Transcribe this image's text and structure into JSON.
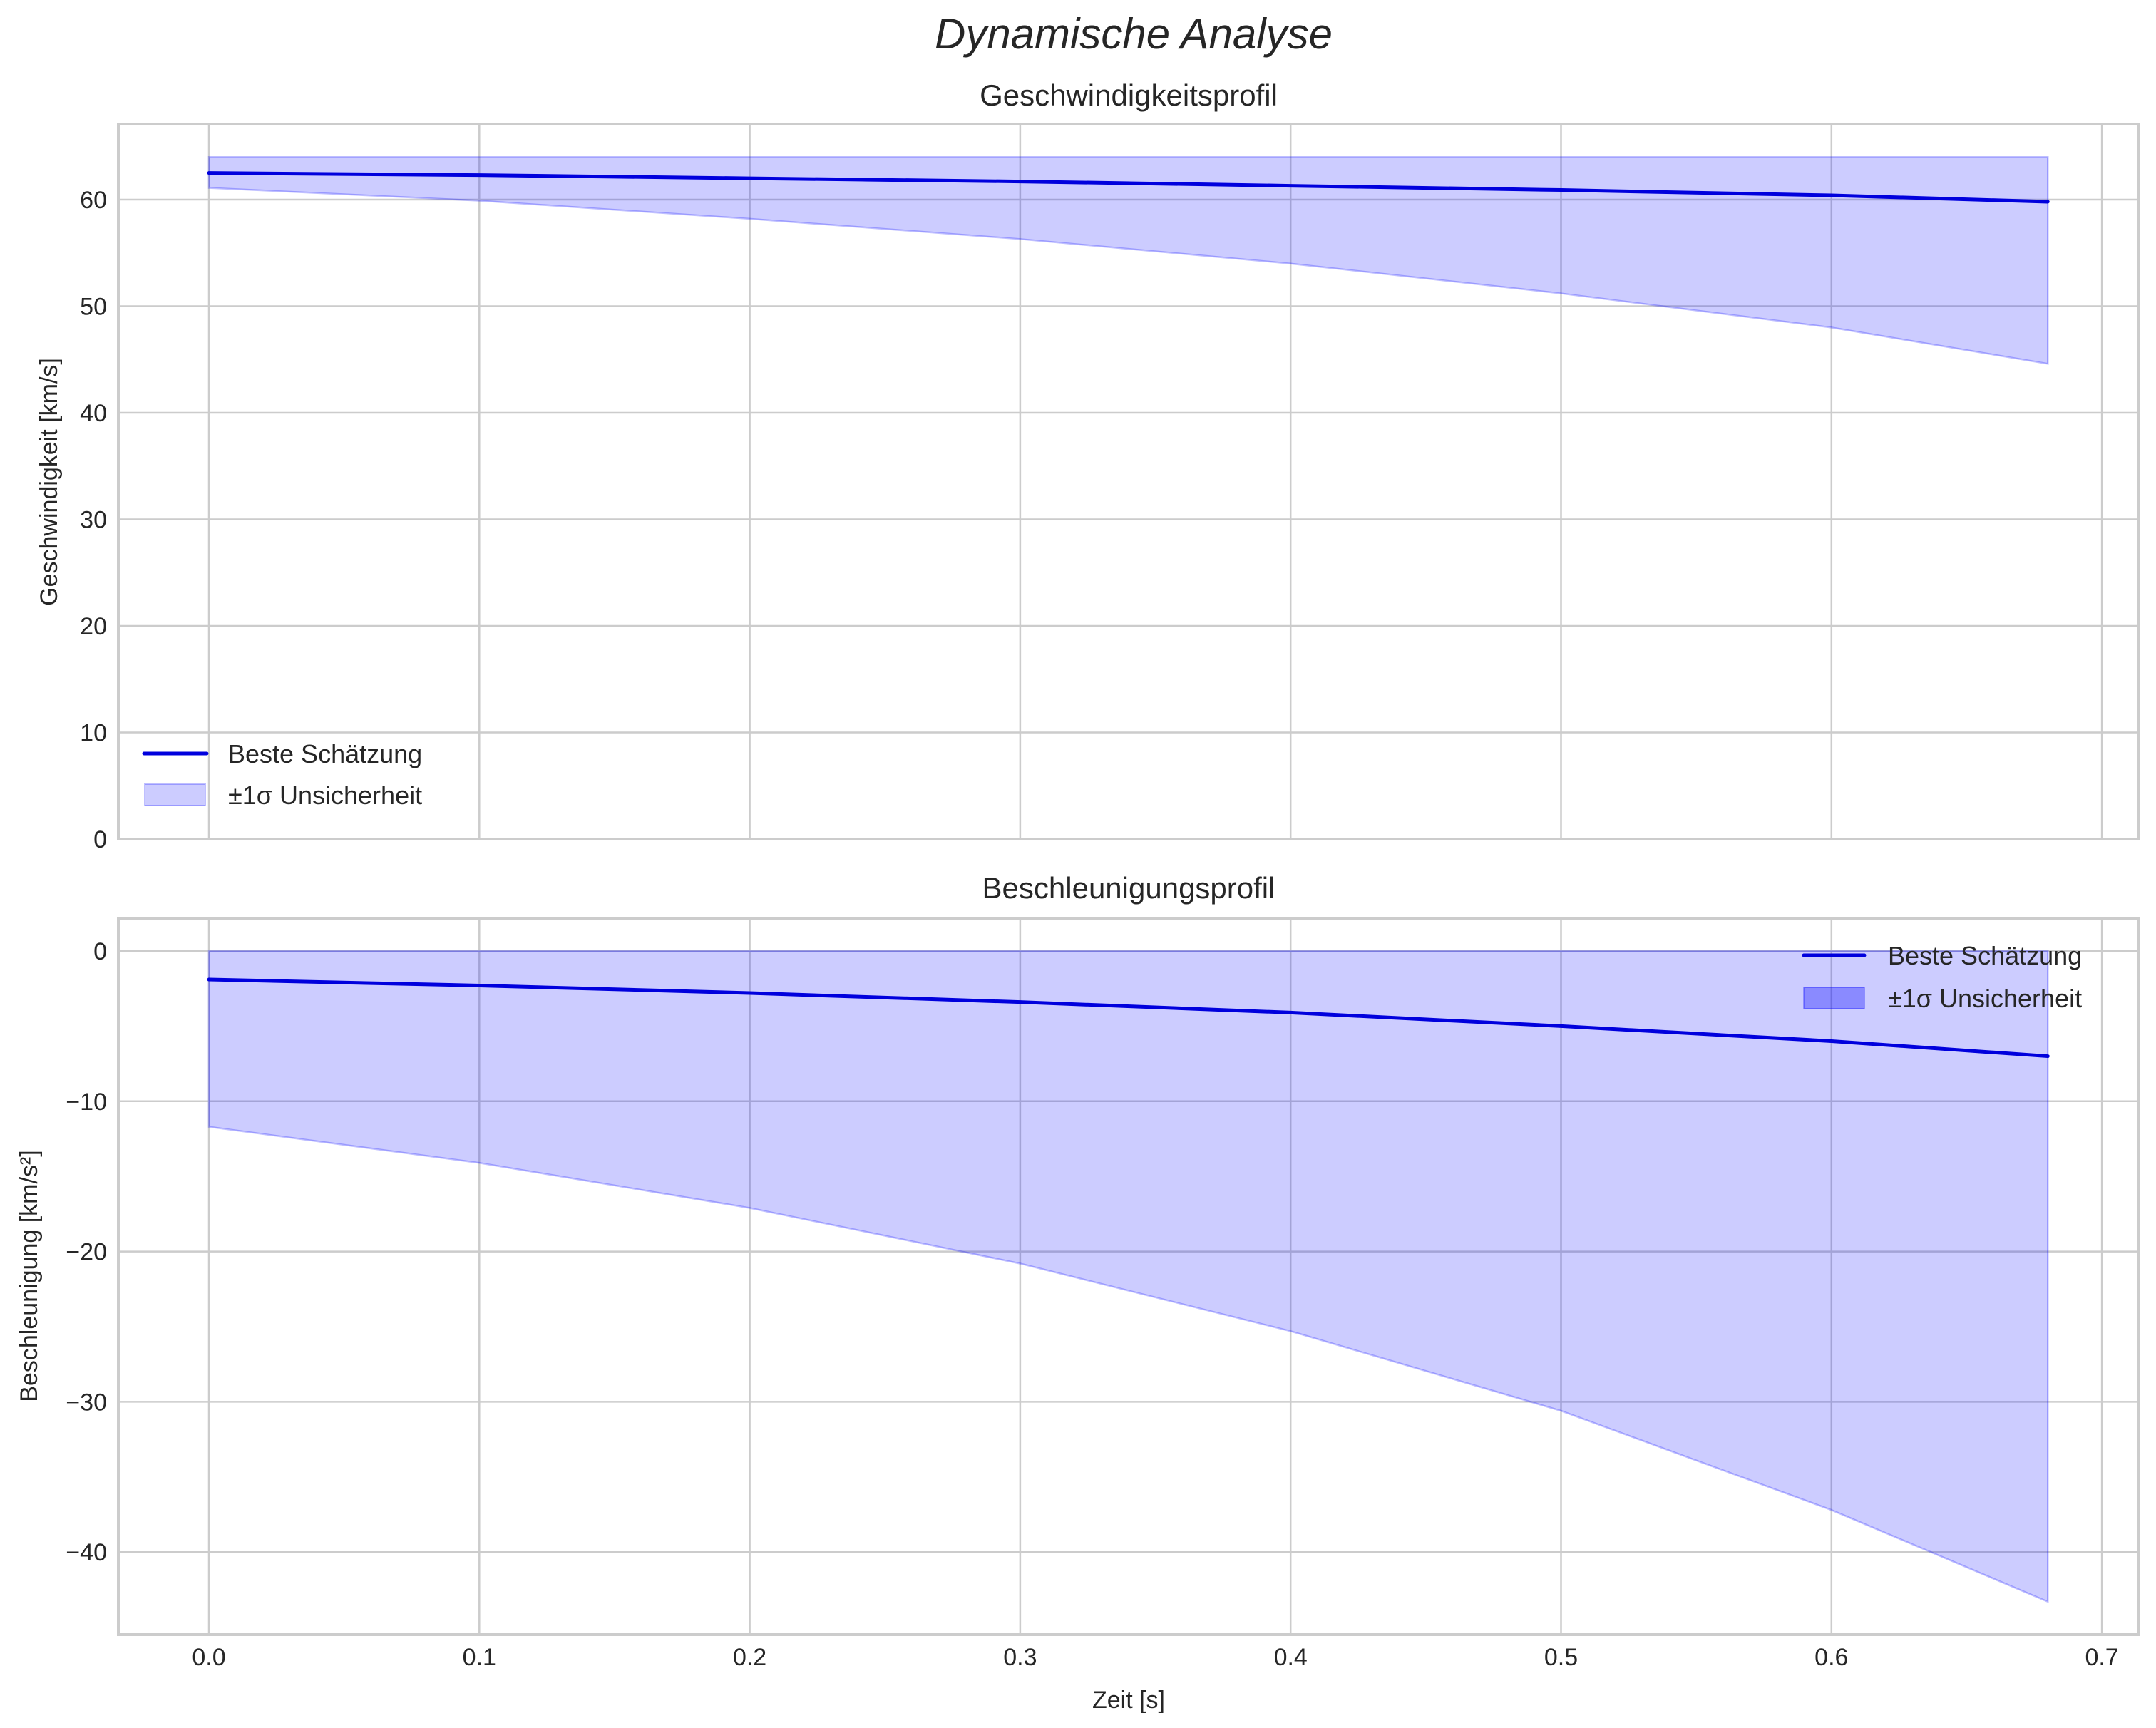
{
  "figure": {
    "title": "Dynamische Analyse",
    "xlabel": "Zeit [s]"
  },
  "colors": {
    "line": "#0000dd",
    "band_fill": "#0000ff",
    "band_alpha": 0.2,
    "grid": "#cccccc",
    "text": "#262626"
  },
  "chart_data": [
    {
      "type": "area",
      "title": "Geschwindigkeitsprofil",
      "xlabel": "",
      "ylabel": "Geschwindigkeit [km/s]",
      "xlim": [
        -0.034,
        0.714
      ],
      "ylim": [
        0,
        67.5
      ],
      "xticks": [
        "0.0",
        "0.1",
        "0.2",
        "0.3",
        "0.4",
        "0.5",
        "0.6",
        "0.7"
      ],
      "yticks": [
        "0",
        "10",
        "20",
        "30",
        "40",
        "50",
        "60"
      ],
      "ytick_values": [
        0,
        10,
        20,
        30,
        40,
        50,
        60
      ],
      "grid": true,
      "legend_position": "lower left",
      "legend": [
        "Beste Schätzung",
        "±1σ Unsicherheit"
      ],
      "x": [
        0.0,
        0.1,
        0.2,
        0.3,
        0.4,
        0.5,
        0.6,
        0.68
      ],
      "series": [
        {
          "name": "Beste Schätzung",
          "values": [
            62.5,
            62.3,
            62.0,
            61.7,
            61.3,
            60.9,
            60.4,
            59.8
          ]
        },
        {
          "name": "±1σ Unsicherheit (upper)",
          "values": [
            64.0,
            64.0,
            64.0,
            64.0,
            64.0,
            64.0,
            64.0,
            64.0
          ]
        },
        {
          "name": "±1σ Unsicherheit (lower)",
          "values": [
            61.1,
            59.9,
            58.2,
            56.3,
            54.0,
            51.2,
            48.0,
            44.6
          ]
        }
      ]
    },
    {
      "type": "area",
      "title": "Beschleunigungsprofil",
      "xlabel": "Zeit [s]",
      "ylabel": "Beschleunigung [km/s²]",
      "xlim": [
        -0.034,
        0.714
      ],
      "ylim": [
        -45.5,
        2.2
      ],
      "xticks": [
        "0.0",
        "0.1",
        "0.2",
        "0.3",
        "0.4",
        "0.5",
        "0.6",
        "0.7"
      ],
      "yticks": [
        "0",
        "−10",
        "−20",
        "−30",
        "−40"
      ],
      "ytick_values": [
        0,
        -10,
        -20,
        -30,
        -40
      ],
      "grid": true,
      "legend_position": "upper right",
      "legend": [
        "Beste Schätzung",
        "±1σ Unsicherheit"
      ],
      "x": [
        0.0,
        0.1,
        0.2,
        0.3,
        0.4,
        0.5,
        0.6,
        0.68
      ],
      "series": [
        {
          "name": "Beste Schätzung",
          "values": [
            -1.9,
            -2.3,
            -2.8,
            -3.4,
            -4.1,
            -5.0,
            -6.0,
            -7.0
          ]
        },
        {
          "name": "±1σ Unsicherheit (upper)",
          "values": [
            0.0,
            0.0,
            0.0,
            0.0,
            0.0,
            0.0,
            0.0,
            0.0
          ]
        },
        {
          "name": "±1σ Unsicherheit (lower)",
          "values": [
            -11.7,
            -14.1,
            -17.1,
            -20.8,
            -25.3,
            -30.6,
            -37.2,
            -43.3
          ]
        }
      ]
    }
  ]
}
